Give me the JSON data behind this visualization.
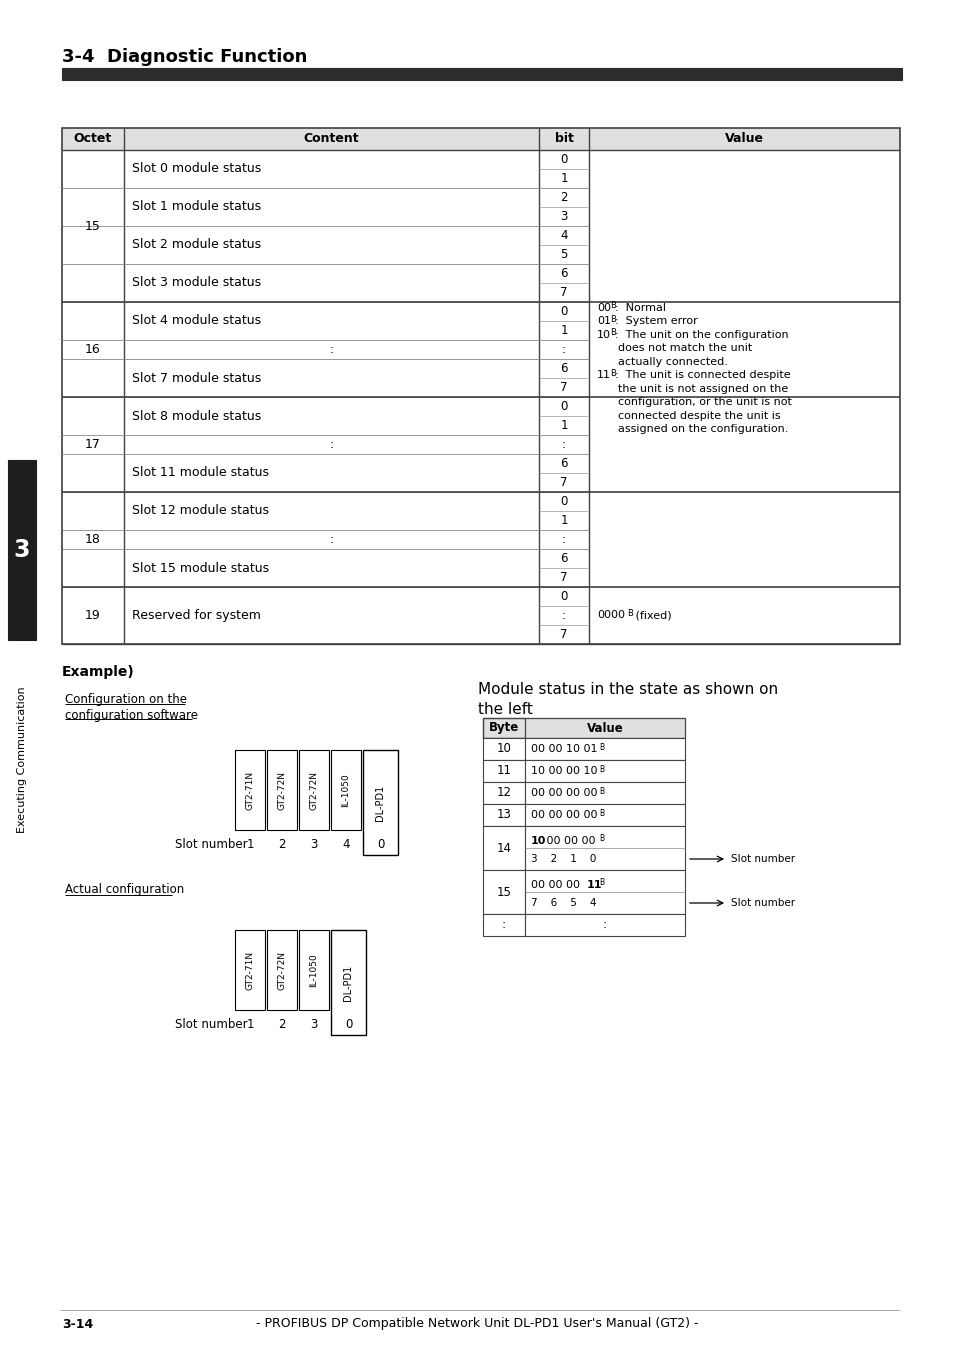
{
  "title": "3-4  Diagnostic Function",
  "page_bg": "#ffffff",
  "header_bar_color": "#2d2d2d",
  "table_header_bg": "#e0e0e0",
  "sidebar": {
    "chapter": "3",
    "label": "Executing Communication"
  },
  "footer": {
    "page": "3-14",
    "text": "- PROFIBUS DP Compatible Network Unit DL-PD1 User's Manual (GT2) -"
  }
}
